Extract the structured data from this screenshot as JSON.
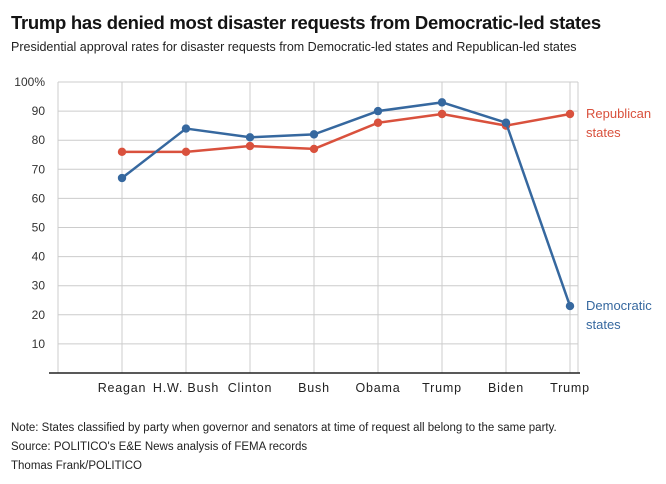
{
  "header": {
    "title": "Trump has denied most disaster requests from Democratic-led states",
    "subtitle": "Presidential approval rates for disaster requests from Democratic-led states and Republican-led states"
  },
  "chart_data": {
    "type": "line",
    "categories": [
      "Reagan",
      "H.W. Bush",
      "Clinton",
      "Bush",
      "Obama",
      "Trump",
      "Biden",
      "Trump"
    ],
    "series": [
      {
        "name": "Republican states",
        "label_lines": [
          "Republican",
          "states"
        ],
        "color": "#d9513d",
        "values": [
          76,
          76,
          78,
          77,
          86,
          89,
          85,
          89
        ]
      },
      {
        "name": "Democratic states",
        "label_lines": [
          "Democratic",
          "states"
        ],
        "color": "#36689f",
        "values": [
          67,
          84,
          81,
          82,
          90,
          93,
          86,
          23
        ]
      }
    ],
    "ylim": [
      0,
      100
    ],
    "yticks": [
      10,
      20,
      30,
      40,
      50,
      60,
      70,
      80,
      90,
      100
    ],
    "ytick_labels": [
      "10",
      "20",
      "30",
      "40",
      "50",
      "60",
      "70",
      "80",
      "90",
      "100%"
    ],
    "xlabel": "",
    "ylabel": "",
    "grid": true,
    "legend_position": "right-of-last-point",
    "grid_color": "#cccccc",
    "axis_color": "#222222"
  },
  "footer": {
    "note": "Note: States classified by party when governor and senators at time of request all belong to the same party.",
    "source": "Source: POLITICO's E&E News analysis of FEMA records",
    "credit": "Thomas Frank/POLITICO"
  }
}
